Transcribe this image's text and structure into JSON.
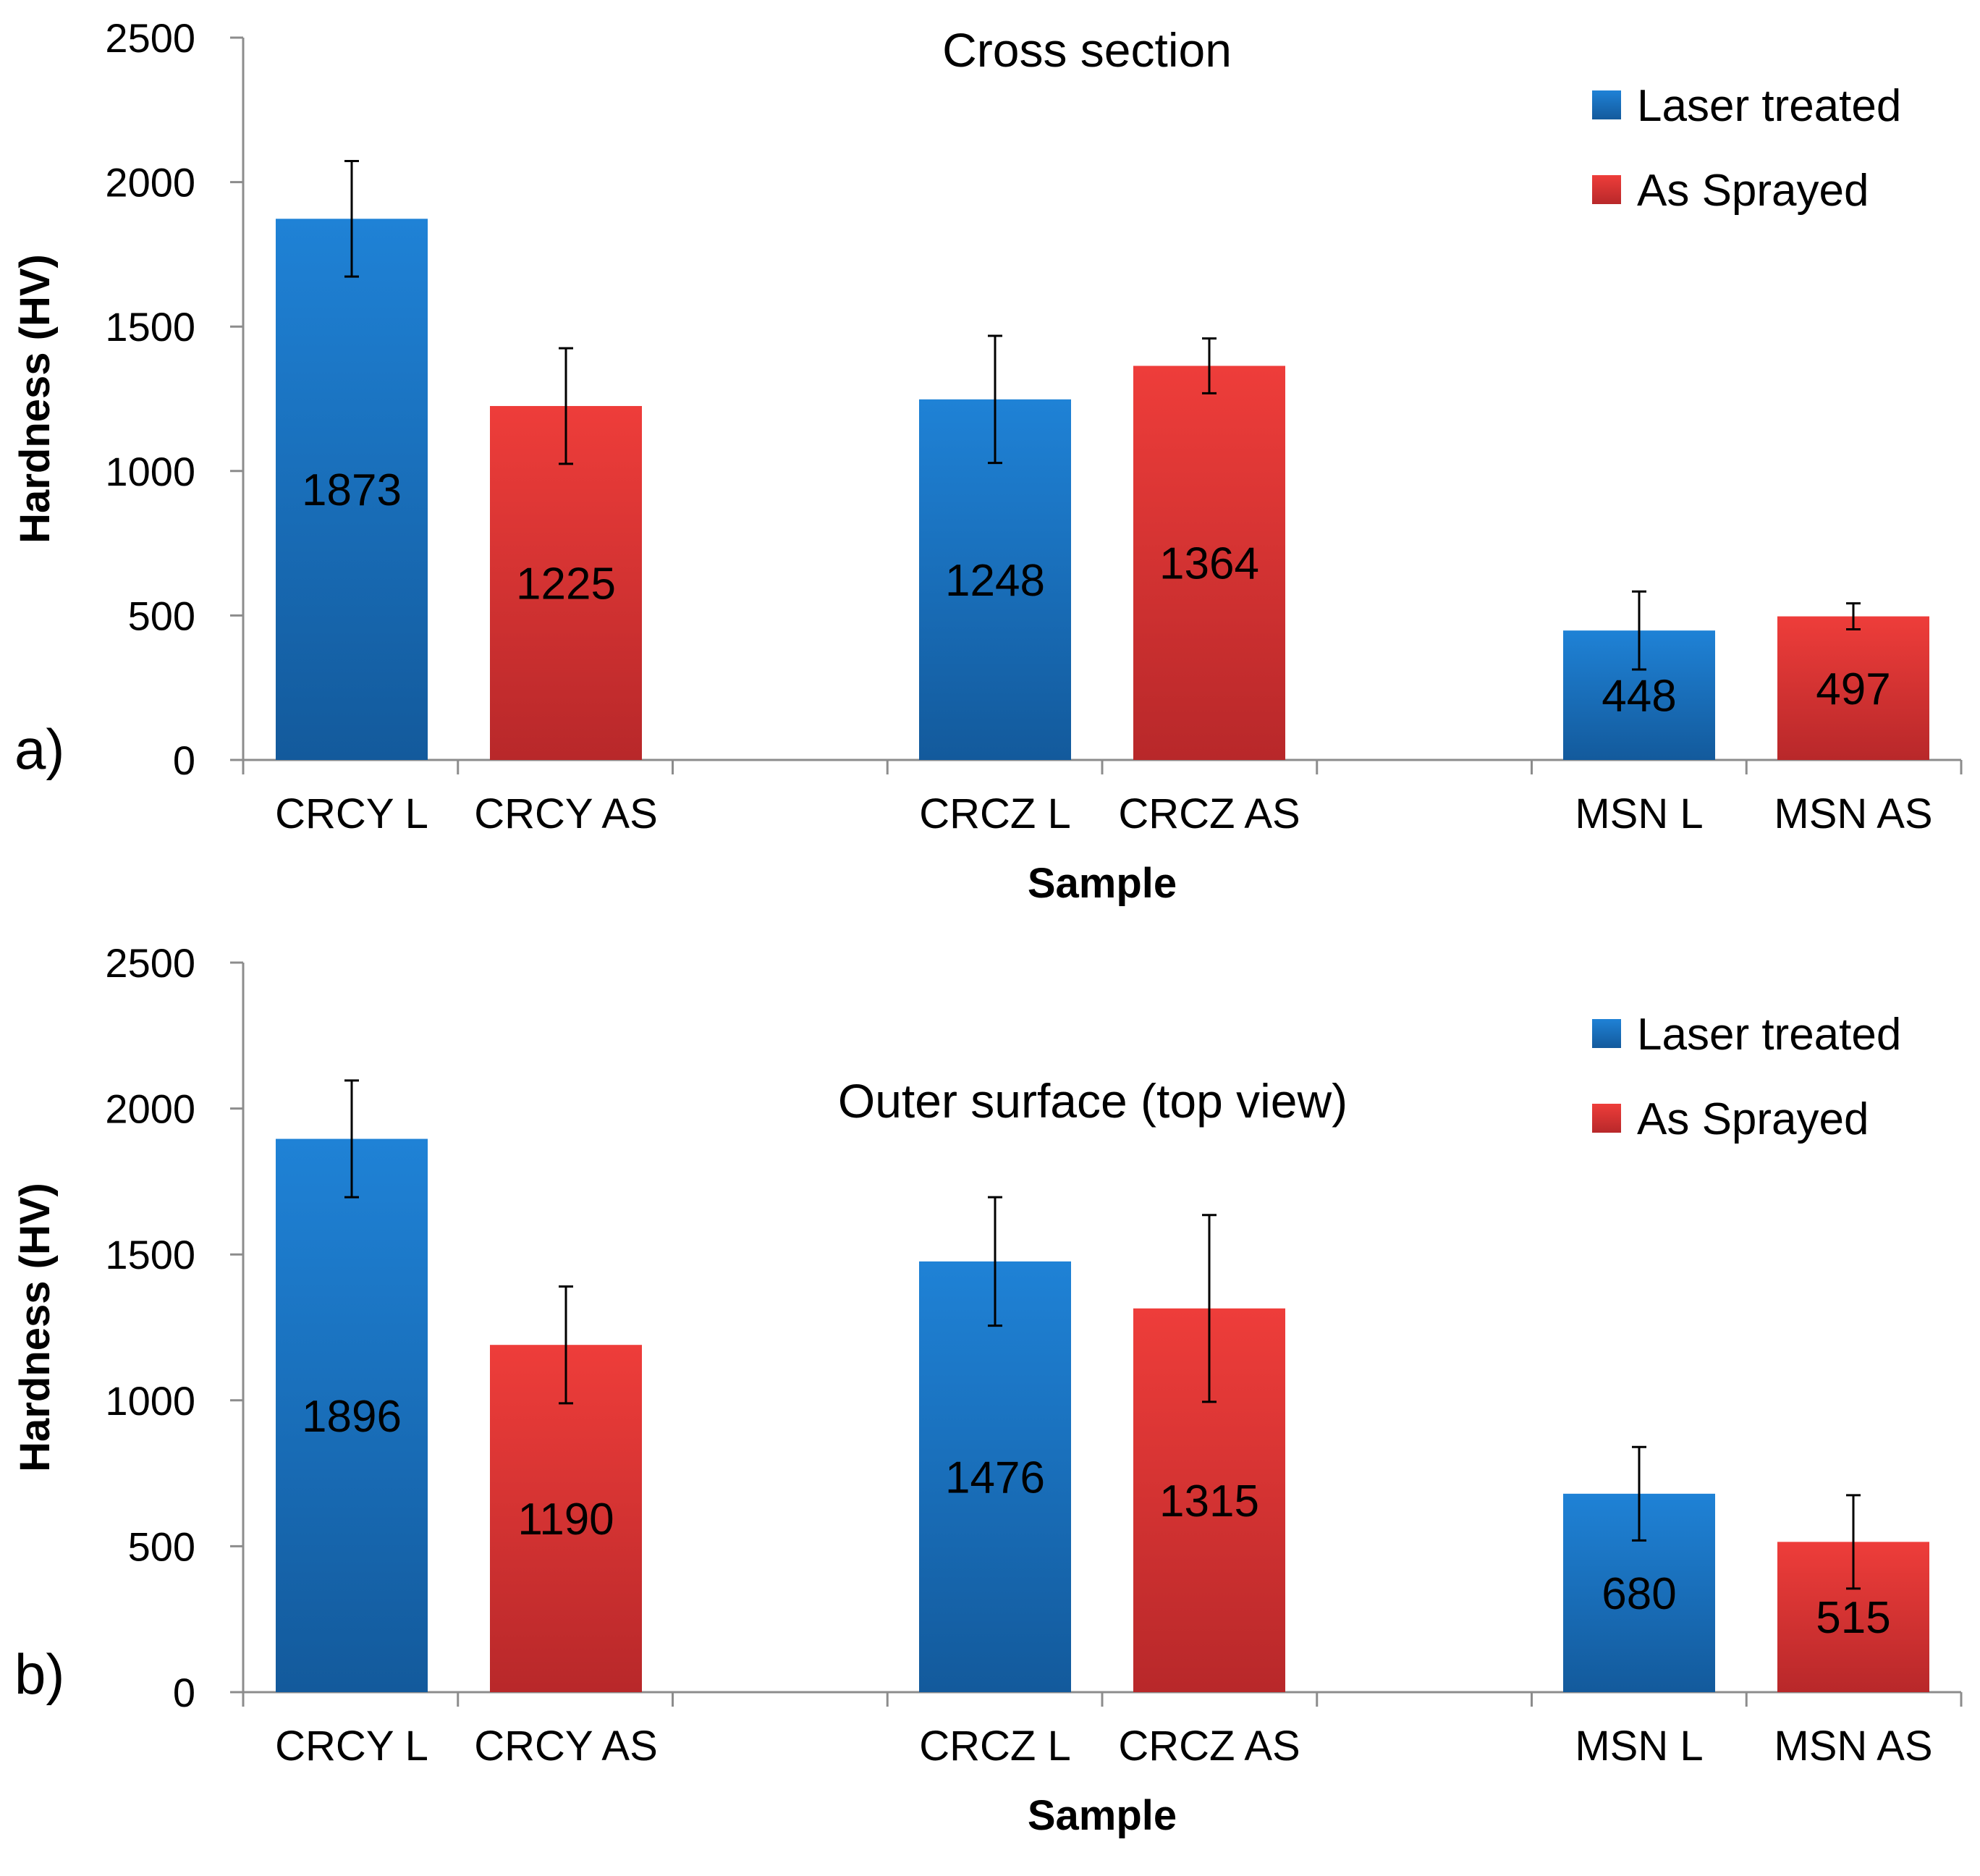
{
  "chart_data": [
    {
      "type": "bar",
      "panel_label": "a)",
      "title": "Cross section",
      "xlabel": "Sample",
      "ylabel": "Hardness (HV)",
      "ylim": [
        0,
        2500
      ],
      "yticks": [
        0,
        500,
        1000,
        1500,
        2000,
        2500
      ],
      "legend_position": "top-right",
      "categories": [
        "CRCY L",
        "CRCY AS",
        "CRCZ L",
        "CRCZ AS",
        "MSN L",
        "MSN AS"
      ],
      "values": [
        1873,
        1225,
        1248,
        1364,
        448,
        497
      ],
      "error": [
        200,
        200,
        220,
        95,
        135,
        45
      ],
      "series_of_bar": [
        "Laser treated",
        "As Sprayed",
        "Laser treated",
        "As Sprayed",
        "Laser treated",
        "As Sprayed"
      ],
      "series": [
        {
          "name": "Laser treated",
          "color": "#1f78c8"
        },
        {
          "name": "As Sprayed",
          "color": "#e53a37"
        }
      ]
    },
    {
      "type": "bar",
      "panel_label": "b)",
      "title": "Outer surface (top view)",
      "xlabel": "Sample",
      "ylabel": "Hardness  (HV)",
      "ylim": [
        0,
        2500
      ],
      "yticks": [
        0,
        500,
        1000,
        1500,
        2000,
        2500
      ],
      "legend_position": "top-right",
      "categories": [
        "CRCY L",
        "CRCY AS",
        "CRCZ L",
        "CRCZ AS",
        "MSN L",
        "MSN AS"
      ],
      "values": [
        1896,
        1190,
        1476,
        1315,
        680,
        515
      ],
      "error": [
        200,
        200,
        220,
        320,
        160,
        160
      ],
      "series_of_bar": [
        "Laser treated",
        "As Sprayed",
        "Laser treated",
        "As Sprayed",
        "Laser treated",
        "As Sprayed"
      ],
      "series": [
        {
          "name": "Laser treated",
          "color": "#1f78c8"
        },
        {
          "name": "As Sprayed",
          "color": "#e53a37"
        }
      ]
    }
  ]
}
